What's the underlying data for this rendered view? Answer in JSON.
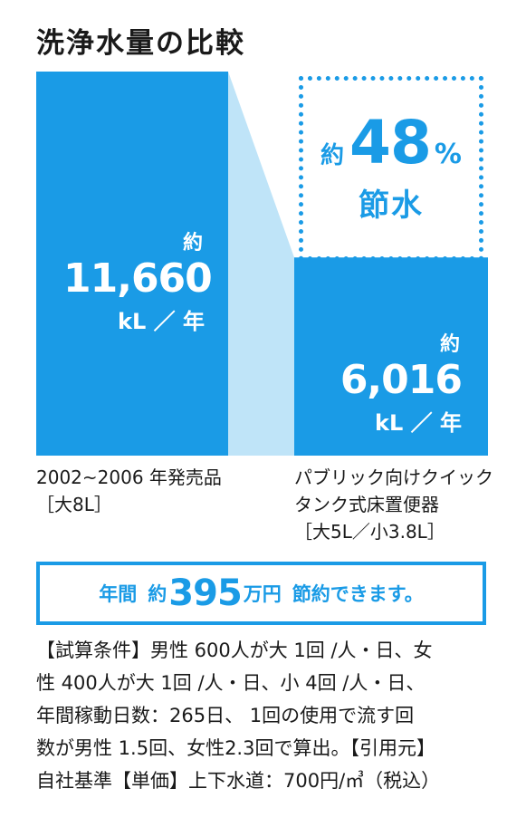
{
  "title": "洗浄水量の比較",
  "chart_data": {
    "type": "bar",
    "title": "洗浄水量の比較",
    "categories": [
      "2002~2006 年発売品",
      "パブリック向けクイックタンク式床置便器"
    ],
    "values": [
      11660,
      6016
    ],
    "unit": "kL ／ 年",
    "value_prefix": "約",
    "bar_color": "#1a9be6",
    "connector_color": "#bfe4f8"
  },
  "bars": [
    {
      "prefix": "約",
      "value_text": "11,660",
      "unit": "kL ／ 年"
    },
    {
      "prefix": "約",
      "value_text": "6,016",
      "unit": "kL ／ 年"
    }
  ],
  "savings": {
    "prefix": "約",
    "percent": "48",
    "percent_sign": "%",
    "word": "節水"
  },
  "categories_text": {
    "left_line1": "2002~2006 年発売品",
    "left_line2": "［大8L］",
    "right_line1": "パブリック向けクイック",
    "right_line2": "タンク式床置便器",
    "right_line3": "［大5L／小3.8L］"
  },
  "banner": {
    "part1": "年間",
    "part2": "約",
    "amount": "395",
    "part3": "万円",
    "part4": "節約できます。"
  },
  "notes": {
    "line1": "【試算条件】男性 600人が大 1回 /人・日、女",
    "line2": "性 400人が大 1回 /人・日、小 4回 /人・日、",
    "line3": "年間稼動日数：265日、 1回の使用で流す回",
    "line4": "数が男性 1.5回、女性2.3回で算出。【引用元】",
    "line5": "自社基準【単価】上下水道：700円/㎥（税込）"
  },
  "colors": {
    "accent": "#1a9be6",
    "light": "#bfe4f8",
    "text": "#1a1a1a"
  }
}
